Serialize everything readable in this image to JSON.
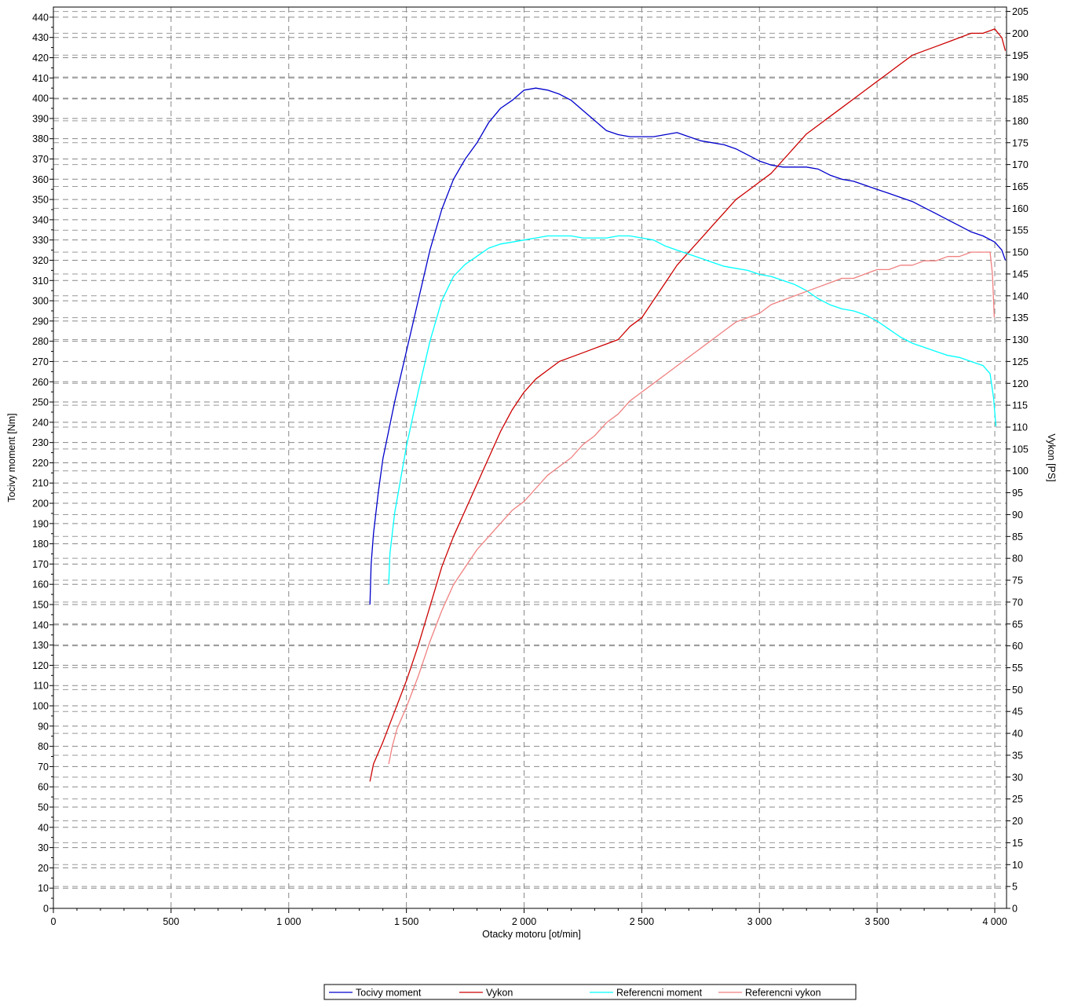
{
  "chart_data": {
    "type": "line",
    "xlabel": "Otacky motoru [ot/min]",
    "ylabel": "Tocivy moment [Nm]",
    "ylabel_right": "Vykon [PS]",
    "xlim": [
      0,
      4050
    ],
    "ylim": [
      0,
      445
    ],
    "ylim_right": [
      0,
      206
    ],
    "x_ticks": [
      0,
      500,
      1000,
      1500,
      2000,
      2500,
      3000,
      3500,
      4000
    ],
    "x_tick_labels": [
      "0",
      "500",
      "1 000",
      "1 500",
      "2 000",
      "2 500",
      "3 000",
      "3 500",
      "4 000"
    ],
    "y_ticks_left": [
      0,
      10,
      20,
      30,
      40,
      50,
      60,
      70,
      80,
      90,
      100,
      110,
      120,
      130,
      140,
      150,
      160,
      170,
      180,
      190,
      200,
      210,
      220,
      230,
      240,
      250,
      260,
      270,
      280,
      290,
      300,
      310,
      320,
      330,
      340,
      350,
      360,
      370,
      380,
      390,
      400,
      410,
      420,
      430,
      440
    ],
    "y_ticks_right": [
      0,
      5,
      10,
      15,
      20,
      25,
      30,
      35,
      40,
      45,
      50,
      55,
      60,
      65,
      70,
      75,
      80,
      85,
      90,
      95,
      100,
      105,
      110,
      115,
      120,
      125,
      130,
      135,
      140,
      145,
      150,
      155,
      160,
      165,
      170,
      175,
      180,
      185,
      190,
      195,
      200,
      205
    ],
    "grid": true,
    "legend_position": "bottom-center",
    "series": [
      {
        "name": "Tocivy moment",
        "axis": "left",
        "color": "#0000cc",
        "points": [
          [
            1345,
            150
          ],
          [
            1350,
            170
          ],
          [
            1360,
            185
          ],
          [
            1380,
            205
          ],
          [
            1400,
            222
          ],
          [
            1450,
            250
          ],
          [
            1500,
            275
          ],
          [
            1550,
            300
          ],
          [
            1600,
            325
          ],
          [
            1650,
            345
          ],
          [
            1700,
            360
          ],
          [
            1750,
            370
          ],
          [
            1800,
            378
          ],
          [
            1850,
            388
          ],
          [
            1900,
            395
          ],
          [
            1950,
            399
          ],
          [
            2000,
            404
          ],
          [
            2050,
            405
          ],
          [
            2100,
            404
          ],
          [
            2150,
            402
          ],
          [
            2200,
            399
          ],
          [
            2250,
            394
          ],
          [
            2300,
            389
          ],
          [
            2350,
            384
          ],
          [
            2400,
            382
          ],
          [
            2450,
            381
          ],
          [
            2500,
            381
          ],
          [
            2550,
            381
          ],
          [
            2600,
            382
          ],
          [
            2650,
            383
          ],
          [
            2700,
            381
          ],
          [
            2750,
            379
          ],
          [
            2800,
            378
          ],
          [
            2850,
            377
          ],
          [
            2900,
            375
          ],
          [
            2950,
            372
          ],
          [
            3000,
            369
          ],
          [
            3050,
            367
          ],
          [
            3100,
            366
          ],
          [
            3150,
            366
          ],
          [
            3200,
            366
          ],
          [
            3250,
            365
          ],
          [
            3300,
            362
          ],
          [
            3350,
            360
          ],
          [
            3400,
            359
          ],
          [
            3450,
            357
          ],
          [
            3500,
            355
          ],
          [
            3550,
            353
          ],
          [
            3600,
            351
          ],
          [
            3650,
            349
          ],
          [
            3700,
            346
          ],
          [
            3750,
            343
          ],
          [
            3800,
            340
          ],
          [
            3850,
            337
          ],
          [
            3900,
            334
          ],
          [
            3950,
            332
          ],
          [
            4000,
            329
          ],
          [
            4030,
            325
          ],
          [
            4045,
            320
          ]
        ]
      },
      {
        "name": "Vykon",
        "axis": "right",
        "color": "#cc0000",
        "points": [
          [
            1345,
            29
          ],
          [
            1360,
            33
          ],
          [
            1400,
            38
          ],
          [
            1450,
            45
          ],
          [
            1500,
            52
          ],
          [
            1550,
            60
          ],
          [
            1600,
            69
          ],
          [
            1650,
            78
          ],
          [
            1700,
            85
          ],
          [
            1750,
            91
          ],
          [
            1800,
            97
          ],
          [
            1850,
            103
          ],
          [
            1900,
            109
          ],
          [
            1950,
            114
          ],
          [
            2000,
            118
          ],
          [
            2050,
            121
          ],
          [
            2100,
            123
          ],
          [
            2150,
            125
          ],
          [
            2200,
            126
          ],
          [
            2250,
            127
          ],
          [
            2300,
            128
          ],
          [
            2350,
            129
          ],
          [
            2400,
            130
          ],
          [
            2450,
            133
          ],
          [
            2500,
            135
          ],
          [
            2550,
            139
          ],
          [
            2600,
            143
          ],
          [
            2650,
            147
          ],
          [
            2700,
            150
          ],
          [
            2750,
            153
          ],
          [
            2800,
            156
          ],
          [
            2850,
            159
          ],
          [
            2900,
            162
          ],
          [
            2950,
            164
          ],
          [
            3000,
            166
          ],
          [
            3050,
            168
          ],
          [
            3100,
            171
          ],
          [
            3150,
            174
          ],
          [
            3200,
            177
          ],
          [
            3250,
            179
          ],
          [
            3300,
            181
          ],
          [
            3350,
            183
          ],
          [
            3400,
            185
          ],
          [
            3450,
            187
          ],
          [
            3500,
            189
          ],
          [
            3550,
            191
          ],
          [
            3600,
            193
          ],
          [
            3650,
            195
          ],
          [
            3700,
            196
          ],
          [
            3750,
            197
          ],
          [
            3800,
            198
          ],
          [
            3850,
            199
          ],
          [
            3900,
            200
          ],
          [
            3950,
            200
          ],
          [
            4000,
            201
          ],
          [
            4030,
            199
          ],
          [
            4045,
            196
          ]
        ]
      },
      {
        "name": "Referencni moment",
        "axis": "left",
        "color": "#00ffff",
        "points": [
          [
            1425,
            160
          ],
          [
            1430,
            175
          ],
          [
            1450,
            195
          ],
          [
            1500,
            228
          ],
          [
            1550,
            255
          ],
          [
            1600,
            280
          ],
          [
            1650,
            300
          ],
          [
            1700,
            312
          ],
          [
            1750,
            318
          ],
          [
            1800,
            322
          ],
          [
            1850,
            326
          ],
          [
            1900,
            328
          ],
          [
            1950,
            329
          ],
          [
            2000,
            330
          ],
          [
            2050,
            331
          ],
          [
            2100,
            332
          ],
          [
            2150,
            332
          ],
          [
            2200,
            332
          ],
          [
            2250,
            331
          ],
          [
            2300,
            331
          ],
          [
            2350,
            331
          ],
          [
            2400,
            332
          ],
          [
            2450,
            332
          ],
          [
            2500,
            331
          ],
          [
            2550,
            330
          ],
          [
            2600,
            327
          ],
          [
            2650,
            325
          ],
          [
            2700,
            323
          ],
          [
            2750,
            321
          ],
          [
            2800,
            319
          ],
          [
            2850,
            317
          ],
          [
            2900,
            316
          ],
          [
            2950,
            315
          ],
          [
            3000,
            313
          ],
          [
            3050,
            312
          ],
          [
            3100,
            310
          ],
          [
            3150,
            308
          ],
          [
            3200,
            305
          ],
          [
            3250,
            301
          ],
          [
            3300,
            298
          ],
          [
            3350,
            296
          ],
          [
            3400,
            295
          ],
          [
            3450,
            293
          ],
          [
            3500,
            290
          ],
          [
            3550,
            286
          ],
          [
            3600,
            282
          ],
          [
            3650,
            279
          ],
          [
            3700,
            277
          ],
          [
            3750,
            275
          ],
          [
            3800,
            273
          ],
          [
            3850,
            272
          ],
          [
            3900,
            270
          ],
          [
            3950,
            268
          ],
          [
            3980,
            264
          ],
          [
            3995,
            252
          ],
          [
            4005,
            238
          ]
        ]
      },
      {
        "name": "Referencni vykon",
        "axis": "right",
        "color": "#f08080",
        "points": [
          [
            1425,
            33
          ],
          [
            1440,
            37
          ],
          [
            1460,
            41
          ],
          [
            1500,
            46
          ],
          [
            1550,
            53
          ],
          [
            1600,
            61
          ],
          [
            1650,
            68
          ],
          [
            1700,
            74
          ],
          [
            1750,
            78
          ],
          [
            1800,
            82
          ],
          [
            1850,
            85
          ],
          [
            1900,
            88
          ],
          [
            1950,
            91
          ],
          [
            2000,
            93
          ],
          [
            2050,
            96
          ],
          [
            2100,
            99
          ],
          [
            2150,
            101
          ],
          [
            2200,
            103
          ],
          [
            2250,
            106
          ],
          [
            2300,
            108
          ],
          [
            2350,
            111
          ],
          [
            2400,
            113
          ],
          [
            2450,
            116
          ],
          [
            2500,
            118
          ],
          [
            2550,
            120
          ],
          [
            2600,
            122
          ],
          [
            2650,
            124
          ],
          [
            2700,
            126
          ],
          [
            2750,
            128
          ],
          [
            2800,
            130
          ],
          [
            2850,
            132
          ],
          [
            2900,
            134
          ],
          [
            2950,
            135
          ],
          [
            3000,
            136
          ],
          [
            3050,
            138
          ],
          [
            3100,
            139
          ],
          [
            3150,
            140
          ],
          [
            3200,
            141
          ],
          [
            3250,
            142
          ],
          [
            3300,
            143
          ],
          [
            3350,
            144
          ],
          [
            3400,
            144
          ],
          [
            3450,
            145
          ],
          [
            3500,
            146
          ],
          [
            3550,
            146
          ],
          [
            3600,
            147
          ],
          [
            3650,
            147
          ],
          [
            3700,
            148
          ],
          [
            3750,
            148
          ],
          [
            3800,
            149
          ],
          [
            3850,
            149
          ],
          [
            3900,
            150
          ],
          [
            3950,
            150
          ],
          [
            3980,
            150
          ],
          [
            3990,
            145
          ],
          [
            3998,
            135
          ]
        ]
      }
    ]
  }
}
